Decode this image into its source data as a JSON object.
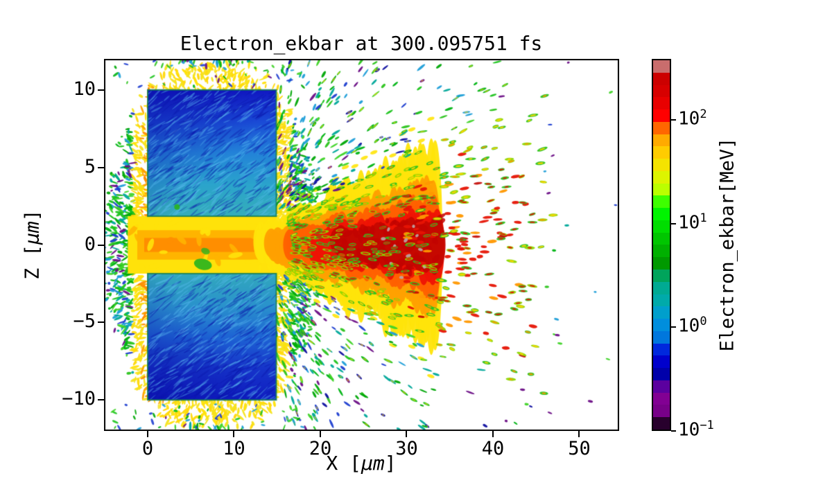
{
  "chart_data": {
    "type": "heatmap",
    "title": "Electron_ekbar at 300.095751 fs",
    "xlabel": {
      "prefix": "X [",
      "unit": "µm",
      "suffix": "]"
    },
    "ylabel": {
      "prefix": "Z [",
      "unit": "µm",
      "suffix": "]"
    },
    "xlim": [
      -5.06,
      54.62
    ],
    "ylim": [
      -12,
      12
    ],
    "xticks": {
      "values": [
        0,
        10,
        20,
        30,
        40,
        50
      ],
      "labels": [
        "0",
        "10",
        "20",
        "30",
        "40",
        "50"
      ]
    },
    "yticks": {
      "values": [
        10,
        5,
        0,
        -5,
        -10
      ],
      "labels": [
        "10",
        "5",
        "0",
        "−5",
        "−10"
      ]
    },
    "colorbar": {
      "label": "Electron_ekbar[MeV]",
      "scale": "log",
      "unit": "MeV",
      "vmin": 0.1,
      "vmax": 386,
      "levels": 30,
      "mantissa": "10",
      "ticks": [
        {
          "exp_display": "2",
          "exp": 2,
          "value": 100
        },
        {
          "exp_display": "1",
          "exp": 1,
          "value": 10
        },
        {
          "exp_display": "0",
          "exp": 0,
          "value": 1
        },
        {
          "exp_display": "−1",
          "exp": -1,
          "value": 0.1
        }
      ],
      "colormap_name": "nipy_spectral",
      "colormap": [
        [
          0.0,
          "#000000"
        ],
        [
          0.05,
          "#770088"
        ],
        [
          0.1,
          "#880099"
        ],
        [
          0.15,
          "#0000aa"
        ],
        [
          0.2,
          "#0000dd"
        ],
        [
          0.25,
          "#0077dd"
        ],
        [
          0.3,
          "#0099dd"
        ],
        [
          0.35,
          "#00aaaa"
        ],
        [
          0.4,
          "#00aa88"
        ],
        [
          0.45,
          "#009900"
        ],
        [
          0.5,
          "#00bb00"
        ],
        [
          0.55,
          "#00dd00"
        ],
        [
          0.6,
          "#00ff00"
        ],
        [
          0.65,
          "#bbff00"
        ],
        [
          0.7,
          "#eeee00"
        ],
        [
          0.75,
          "#ffcc00"
        ],
        [
          0.8,
          "#ff9900"
        ],
        [
          0.85,
          "#ff0000"
        ],
        [
          0.9,
          "#dd0000"
        ],
        [
          0.95,
          "#cc0000"
        ],
        [
          1.0,
          "#c8a4a4"
        ]
      ]
    },
    "features": {
      "targets": [
        {
          "x": [
            0,
            14.9
          ],
          "z": [
            1.85,
            10.0
          ]
        },
        {
          "x": [
            0,
            14.9
          ],
          "z": [
            -10.0,
            -1.85
          ]
        }
      ],
      "slit": {
        "x": [
          -2.3,
          14.9
        ],
        "z": [
          -1.85,
          1.85
        ]
      },
      "plasma_cloud": {
        "center": [
          7.5,
          0
        ],
        "rx": 12.8,
        "rz": 12.7
      },
      "jet": {
        "apex_x": 13,
        "solid_end": 33.5,
        "frag_end": 47,
        "spread": 0.28,
        "base_halfwidth": 1.2
      },
      "hotspot": {
        "x": [
          22,
          34
        ],
        "z": [
          -2.5,
          2
        ]
      }
    },
    "render": {
      "seed": 1337,
      "cloud": {
        "count": 5200,
        "fade_start": 0.84,
        "fade_end": 1.07
      },
      "halo": {
        "dist": 1.7,
        "orange_dist": 0.7
      },
      "edge_fans": {
        "count": 170,
        "z_min": 10.2,
        "z_max": 11.9,
        "x_min": -4,
        "x_max": 18
      },
      "jet_layers": [
        {
          "c": "#ffe40a",
          "f": 1.0,
          "x0": 13.0,
          "x1": 33.5
        },
        {
          "c": "#ffa000",
          "f": 0.64,
          "x0": 14.2,
          "x1": 33.5
        },
        {
          "c": "#ff6000",
          "f": 0.46,
          "x0": 16.5,
          "x1": 33.5
        },
        {
          "c": "#ee1404",
          "f": 0.34,
          "x0": 19.5,
          "x1": 33.5
        },
        {
          "c": "#c60800",
          "f": 0.24,
          "x0": 22.0,
          "x1": 34.0
        }
      ],
      "jet_frag": {
        "count": 320,
        "x0": 30.0,
        "x1": 47.0
      },
      "jet_mottle": {
        "count": 85,
        "color": "#c20400"
      },
      "gray_specks": [
        [
          27.3,
          0.4
        ],
        [
          28.6,
          -0.1
        ],
        [
          30.2,
          -0.7
        ],
        [
          28.2,
          -1.2
        ],
        [
          31.2,
          0.6
        ],
        [
          26.6,
          -0.5
        ],
        [
          32.1,
          -1.4
        ],
        [
          29.4,
          -2.1
        ],
        [
          30.8,
          1.2
        ],
        [
          27.9,
          1.0
        ],
        [
          29.9,
          0.3
        ],
        [
          31.6,
          -0.3
        ]
      ],
      "gray_speck_color": "#bda4a4",
      "debris": {
        "count": 1650,
        "falloff": 19,
        "max_d": 41,
        "src_x": 14
      },
      "blocks": {
        "texture_count": 560,
        "angle": 0.62,
        "border": "rgba(16,125,84,0.85)",
        "green_dot": [
          3.4,
          2.45
        ],
        "upper_grad": [
          "#1219c6",
          "#1a4ad6",
          "#2383d8",
          "#2ba4cc",
          "#35adb9"
        ],
        "lower_grad": [
          "#32a8bc",
          "#2a93cc",
          "#1e64d4",
          "#1634ca",
          "#101ec2"
        ],
        "tex_light": "rgba(92,190,242,0.38)",
        "tex_dark": "rgba(10,22,172,0.38)"
      },
      "palette": {
        "yellow": [
          "#ffe20a",
          "#ffd80a",
          "#f5e41e"
        ],
        "orange": [
          "#ffa200",
          "#ff8c00"
        ],
        "inner": [
          "#c8e800",
          "#a4dc00",
          "#50cc1e",
          "#8cd800"
        ],
        "green": [
          "#1ec41e",
          "#00b414",
          "#40d428",
          "#00a807",
          "#2cc41e"
        ],
        "teal": "#00a89a",
        "cyan": "#1e9ed8",
        "blue": "#1e3ed0",
        "purple": "#6c0e86",
        "navy": "#1010a0",
        "slit_base": "#ffe20a",
        "slit_mid": "#ffb400",
        "slit_core": "#ff8e00",
        "plume": "#2ab41e",
        "warm_rim": [
          "#2cc41e",
          "#8cd800"
        ],
        "warm_core_red": "#e61404",
        "warm_core_orange": "#ff9800",
        "warm_core_yellow": "#ffd400"
      }
    }
  }
}
